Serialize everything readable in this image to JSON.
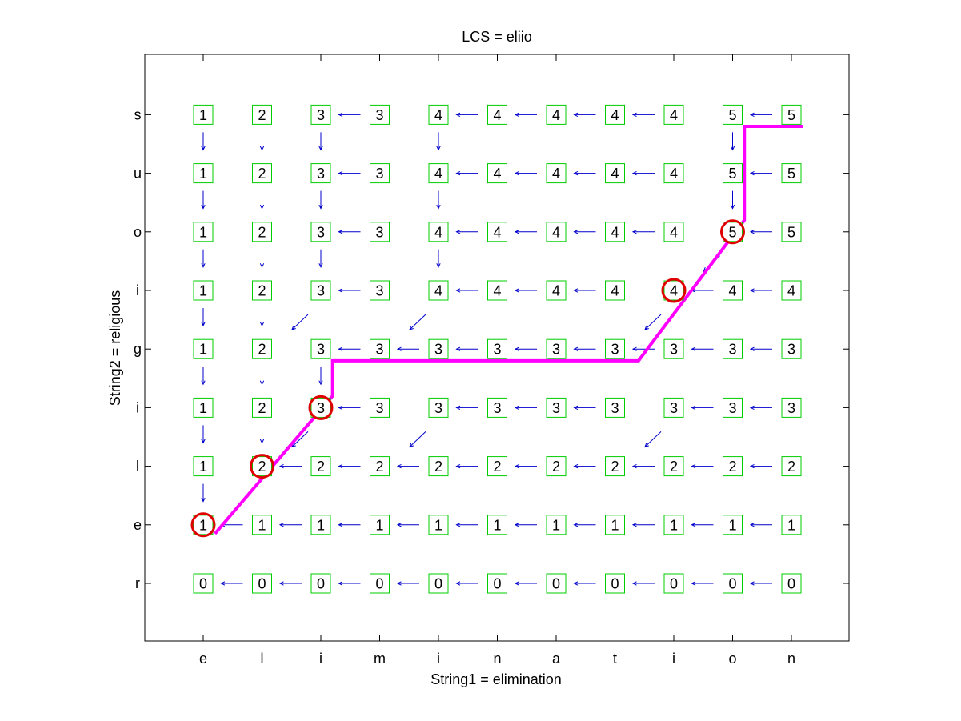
{
  "title": "LCS = eliio",
  "xlabel": "String1 = elimination",
  "ylabel": "String2 = religious",
  "string1": [
    "e",
    "l",
    "i",
    "m",
    "i",
    "n",
    "a",
    "t",
    "i",
    "o",
    "n"
  ],
  "string2_bottom_to_top": [
    "r",
    "e",
    "l",
    "i",
    "g",
    "i",
    "o",
    "u",
    "s"
  ],
  "values": [
    [
      0,
      0,
      0,
      0,
      0,
      0,
      0,
      0,
      0,
      0,
      0
    ],
    [
      1,
      1,
      1,
      1,
      1,
      1,
      1,
      1,
      1,
      1,
      1
    ],
    [
      1,
      2,
      2,
      2,
      2,
      2,
      2,
      2,
      2,
      2,
      2
    ],
    [
      1,
      2,
      3,
      3,
      3,
      3,
      3,
      3,
      3,
      3,
      3
    ],
    [
      1,
      2,
      3,
      3,
      3,
      3,
      3,
      3,
      3,
      3,
      3
    ],
    [
      1,
      2,
      3,
      3,
      4,
      4,
      4,
      4,
      4,
      4,
      4
    ],
    [
      1,
      2,
      3,
      3,
      4,
      4,
      4,
      4,
      4,
      5,
      5
    ],
    [
      1,
      2,
      3,
      3,
      4,
      4,
      4,
      4,
      4,
      5,
      5
    ],
    [
      1,
      2,
      3,
      3,
      4,
      4,
      4,
      4,
      4,
      5,
      5
    ]
  ],
  "arrows": [
    [
      "",
      "L",
      "L",
      "L",
      "L",
      "L",
      "L",
      "L",
      "L",
      "L",
      "L"
    ],
    [
      "",
      "L",
      "L",
      "L",
      "L",
      "L",
      "L",
      "L",
      "L",
      "L",
      "L"
    ],
    [
      "U",
      "",
      "L",
      "L",
      "L",
      "L",
      "L",
      "L",
      "L",
      "L",
      "L"
    ],
    [
      "U",
      "U",
      "D",
      "L",
      "D",
      "L",
      "L",
      "L",
      "D",
      "L",
      "L"
    ],
    [
      "U",
      "U",
      "U",
      "L",
      "L",
      "L",
      "L",
      "L",
      "L",
      "L",
      "L"
    ],
    [
      "U",
      "U",
      "D",
      "L",
      "D",
      "L",
      "L",
      "L",
      "D",
      "L",
      "L"
    ],
    [
      "U",
      "U",
      "U",
      "L",
      "U",
      "L",
      "L",
      "L",
      "L",
      "D",
      "L"
    ],
    [
      "U",
      "U",
      "U",
      "L",
      "U",
      "L",
      "L",
      "L",
      "L",
      "U",
      "L"
    ],
    [
      "U",
      "U",
      "U",
      "L",
      "U",
      "L",
      "L",
      "L",
      "L",
      "U",
      "L"
    ]
  ],
  "lcs_cells": [
    [
      0,
      1
    ],
    [
      1,
      2
    ],
    [
      2,
      3
    ],
    [
      8,
      5
    ],
    [
      9,
      6
    ]
  ],
  "path": [
    [
      0.2,
      0.85
    ],
    [
      2.2,
      3.2
    ],
    [
      2.2,
      3.8
    ],
    [
      7.4,
      3.8
    ],
    [
      9.2,
      6.2
    ],
    [
      9.2,
      7.8
    ],
    [
      10.2,
      7.8
    ]
  ],
  "colors": {
    "cell_border": "#00cc00",
    "arrow": "#0000cc",
    "path": "#ff00ff",
    "circle": "#e00000",
    "axis": "#000000"
  }
}
